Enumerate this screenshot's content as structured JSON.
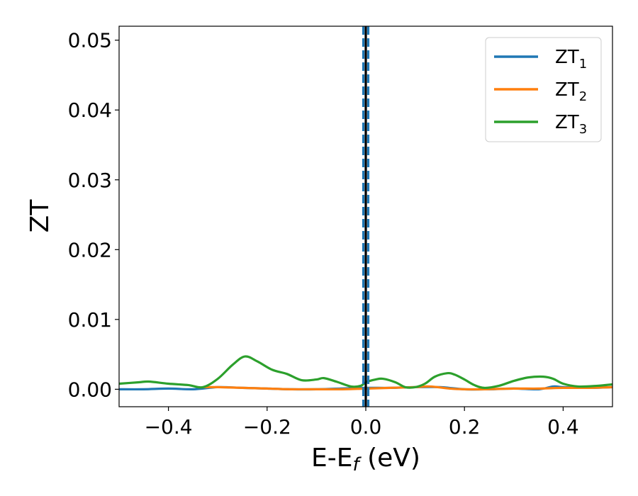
{
  "chart_data": {
    "type": "line",
    "xlabel": "E-E",
    "xlabel_sub": "f",
    "xlabel_suffix": " (eV)",
    "ylabel": "ZT",
    "xlim": [
      -0.5,
      0.5
    ],
    "ylim": [
      -0.0025,
      0.052
    ],
    "xticks": [
      -0.4,
      -0.2,
      0.0,
      0.2,
      0.4
    ],
    "xtick_labels": [
      "−0.4",
      "−0.2",
      "0.0",
      "0.2",
      "0.4"
    ],
    "yticks": [
      0.0,
      0.01,
      0.02,
      0.03,
      0.04,
      0.05
    ],
    "ytick_labels": [
      "0.00",
      "0.01",
      "0.02",
      "0.03",
      "0.04",
      "0.05"
    ],
    "legend_position": "top-right",
    "vertical_lines": [
      {
        "x": 0.0,
        "color": "#000000",
        "style": "solid"
      },
      {
        "x": -0.005,
        "color": "#1f77b4",
        "style": "dashed"
      },
      {
        "x": 0.005,
        "color": "#1f77b4",
        "style": "dashed"
      }
    ],
    "series": [
      {
        "name": "ZT",
        "name_sub": "1",
        "color": "#1f77b4",
        "x": [
          -0.5,
          -0.45,
          -0.4,
          -0.35,
          -0.3,
          -0.25,
          -0.2,
          -0.15,
          -0.1,
          -0.05,
          0.0,
          0.05,
          0.1,
          0.15,
          0.2,
          0.25,
          0.3,
          0.35,
          0.38,
          0.4,
          0.45,
          0.5
        ],
        "y": [
          0.0,
          0.0,
          0.0001,
          0.0,
          0.0003,
          0.0002,
          0.0001,
          0.0,
          0.0,
          0.0001,
          0.0002,
          0.0002,
          0.0003,
          0.0003,
          0.0,
          0.0,
          0.0001,
          0.0,
          0.0004,
          0.0003,
          0.0002,
          0.0003
        ]
      },
      {
        "name": "ZT",
        "name_sub": "2",
        "color": "#ff7f0e",
        "x": [
          -0.33,
          -0.3,
          -0.25,
          -0.2,
          -0.15,
          -0.1,
          -0.05,
          0.0,
          0.05,
          0.1,
          0.13,
          0.17,
          0.2,
          0.24,
          0.3,
          0.35,
          0.4,
          0.45,
          0.5
        ],
        "y": [
          0.0003,
          0.0003,
          0.0002,
          0.0001,
          0.0,
          0.0,
          0.0,
          0.0001,
          0.0002,
          0.0003,
          0.0004,
          0.0001,
          0.0,
          0.0,
          0.0001,
          0.0001,
          0.0002,
          0.0002,
          0.0003
        ]
      },
      {
        "name": "ZT",
        "name_sub": "3",
        "color": "#2ca02c",
        "x": [
          -0.5,
          -0.46,
          -0.44,
          -0.4,
          -0.36,
          -0.33,
          -0.3,
          -0.27,
          -0.245,
          -0.22,
          -0.19,
          -0.16,
          -0.13,
          -0.1,
          -0.085,
          -0.06,
          -0.03,
          -0.01,
          0.0,
          0.02,
          0.035,
          0.06,
          0.08,
          0.1,
          0.12,
          0.14,
          0.165,
          0.18,
          0.2,
          0.22,
          0.24,
          0.27,
          0.3,
          0.33,
          0.36,
          0.38,
          0.4,
          0.43,
          0.47,
          0.5
        ],
        "y": [
          0.0008,
          0.001,
          0.0011,
          0.0008,
          0.0006,
          0.0003,
          0.0015,
          0.0035,
          0.0047,
          0.004,
          0.0028,
          0.0022,
          0.0013,
          0.0014,
          0.0016,
          0.0011,
          0.0004,
          0.0005,
          0.001,
          0.0014,
          0.0015,
          0.001,
          0.0003,
          0.0003,
          0.0008,
          0.0018,
          0.0023,
          0.0021,
          0.0014,
          0.0006,
          0.0002,
          0.0005,
          0.0012,
          0.0017,
          0.0018,
          0.0015,
          0.0008,
          0.0004,
          0.0005,
          0.0007
        ]
      }
    ]
  }
}
